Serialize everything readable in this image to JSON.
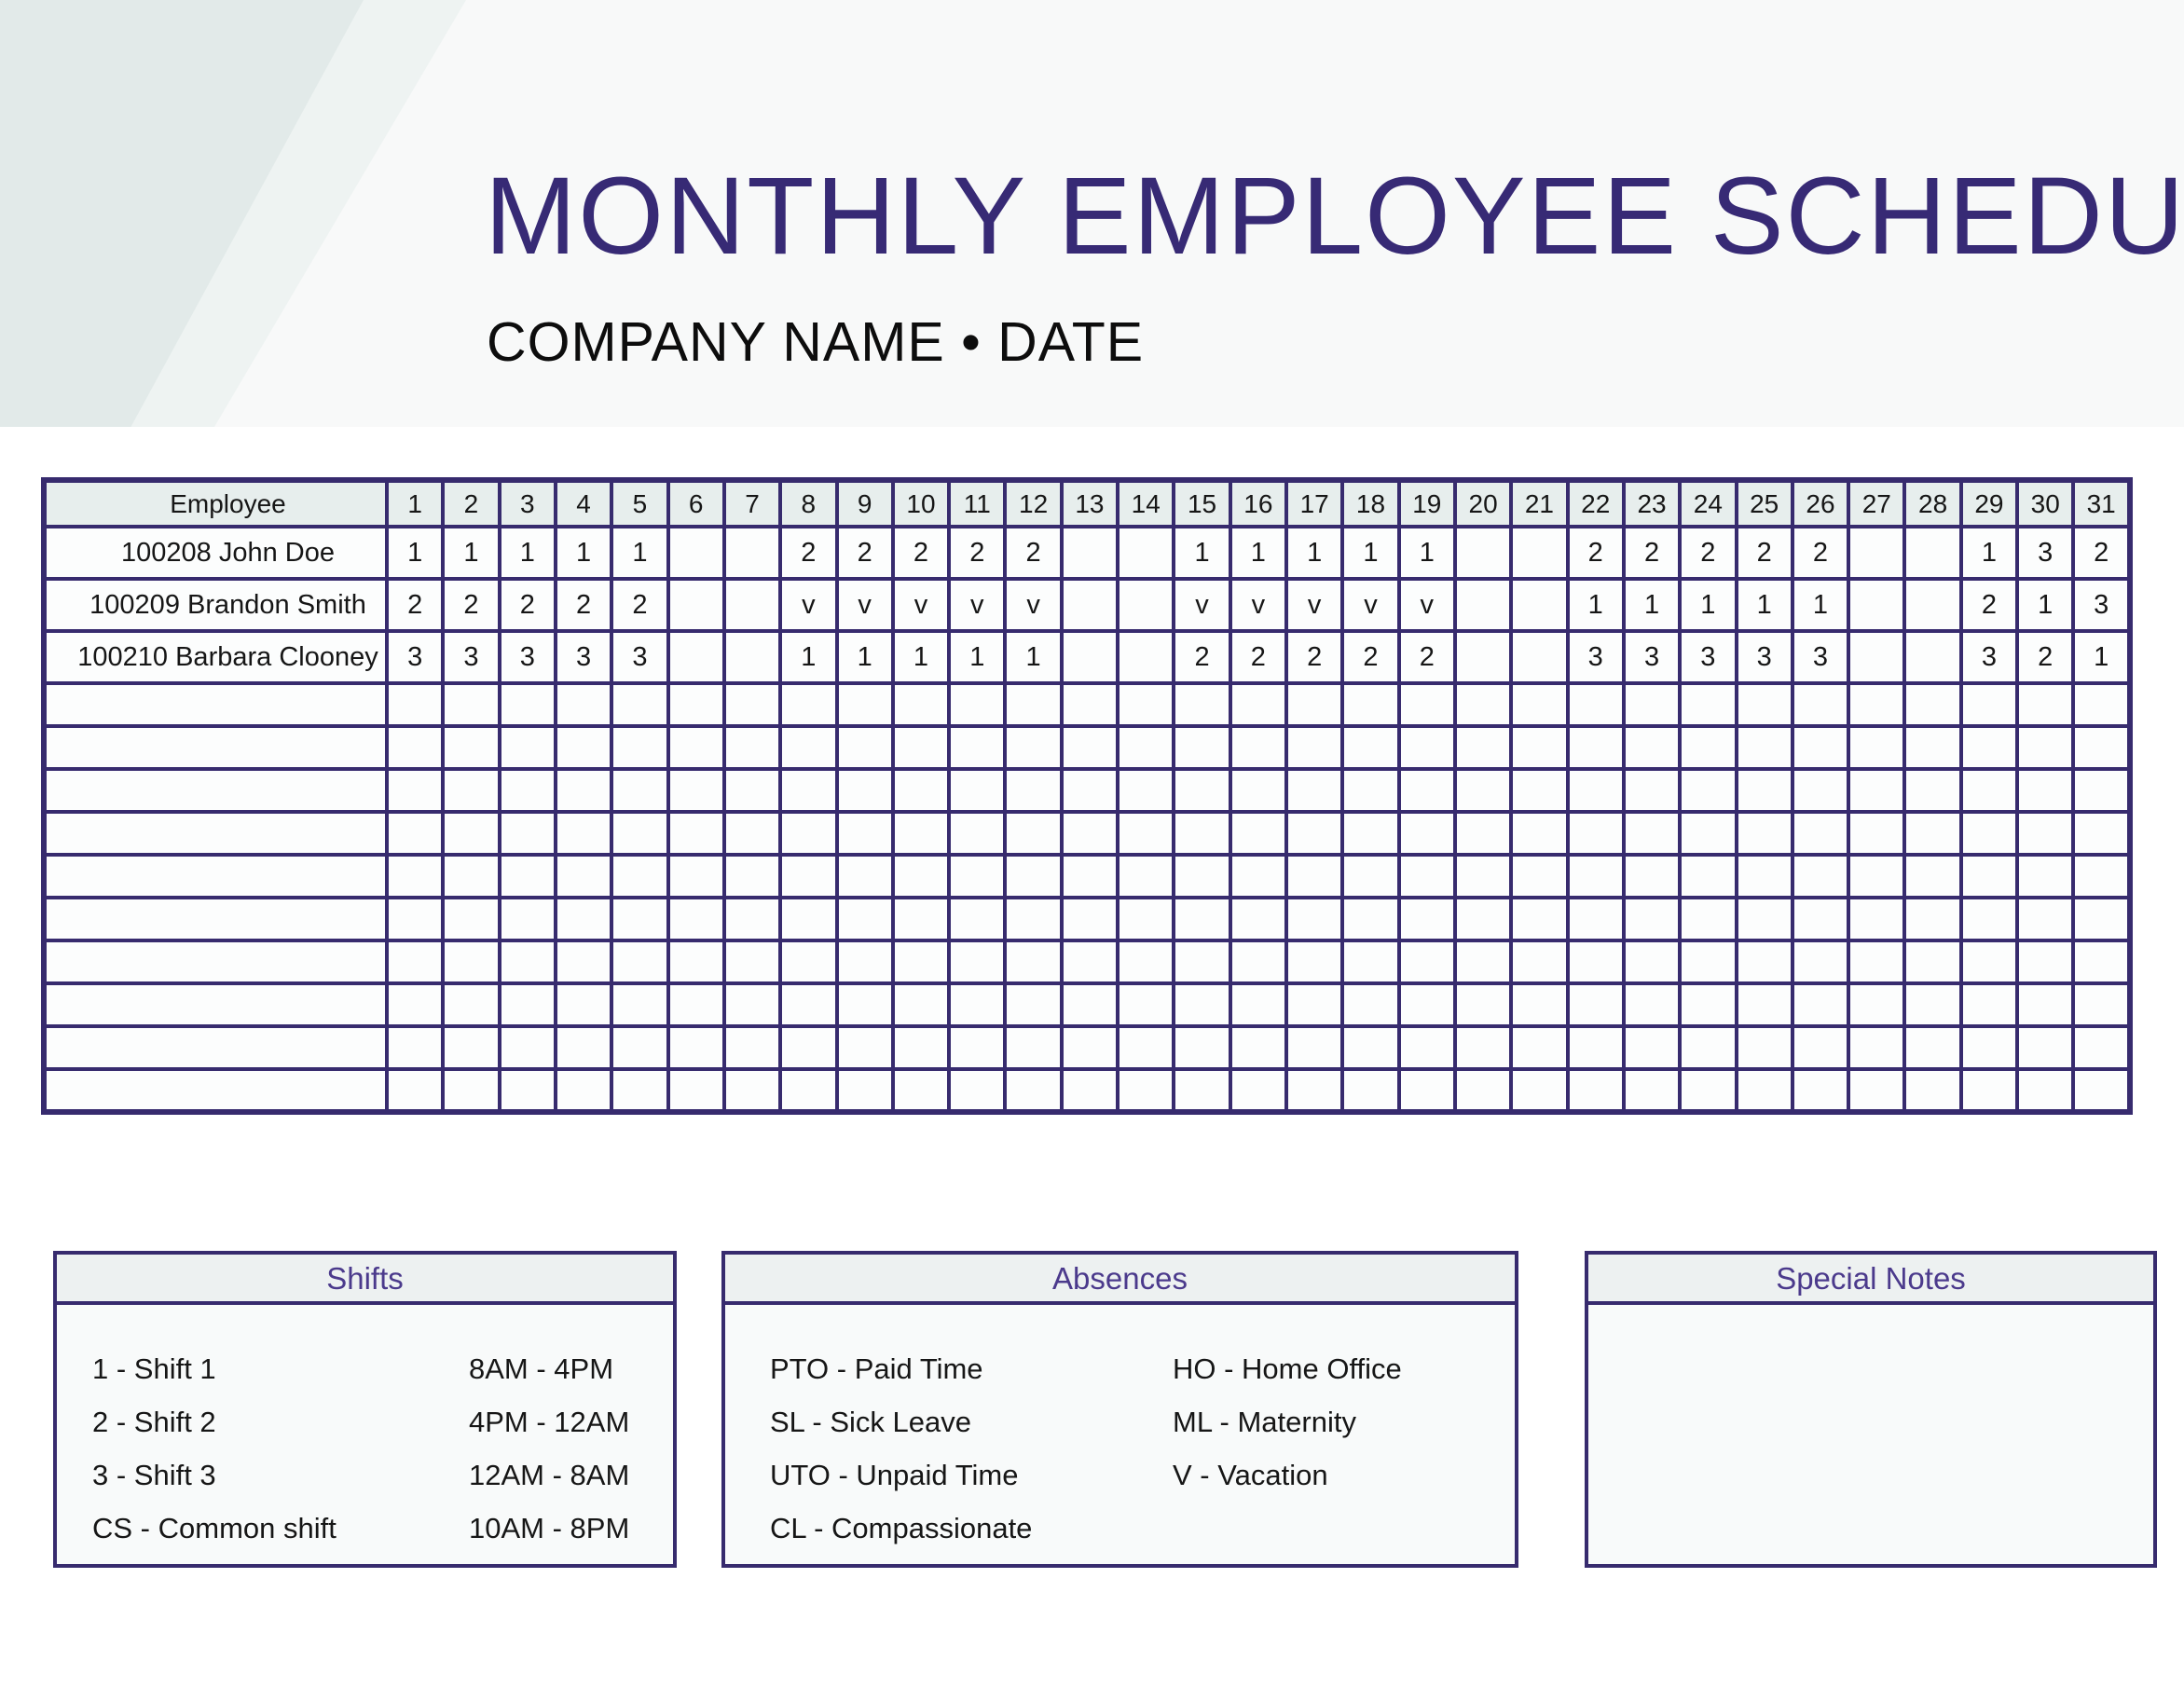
{
  "header": {
    "title": "MONTHLY EMPLOYEE SCHEDULE",
    "subtitle": "COMPANY NAME • DATE"
  },
  "schedule_table": {
    "employee_header": "Employee",
    "day_headers": [
      "1",
      "2",
      "3",
      "4",
      "5",
      "6",
      "7",
      "8",
      "9",
      "10",
      "11",
      "12",
      "13",
      "14",
      "15",
      "16",
      "17",
      "18",
      "19",
      "20",
      "21",
      "22",
      "23",
      "24",
      "25",
      "26",
      "27",
      "28",
      "29",
      "30",
      "31"
    ],
    "rows": [
      {
        "employee": "100208 John Doe",
        "days": [
          "1",
          "1",
          "1",
          "1",
          "1",
          "",
          "",
          "2",
          "2",
          "2",
          "2",
          "2",
          "",
          "",
          "1",
          "1",
          "1",
          "1",
          "1",
          "",
          "",
          "2",
          "2",
          "2",
          "2",
          "2",
          "",
          "",
          "1",
          "3",
          "2"
        ]
      },
      {
        "employee": "100209 Brandon Smith",
        "days": [
          "2",
          "2",
          "2",
          "2",
          "2",
          "",
          "",
          "v",
          "v",
          "v",
          "v",
          "v",
          "",
          "",
          "v",
          "v",
          "v",
          "v",
          "v",
          "",
          "",
          "1",
          "1",
          "1",
          "1",
          "1",
          "",
          "",
          "2",
          "1",
          "3"
        ]
      },
      {
        "employee": "100210 Barbara Clooney",
        "days": [
          "3",
          "3",
          "3",
          "3",
          "3",
          "",
          "",
          "1",
          "1",
          "1",
          "1",
          "1",
          "",
          "",
          "2",
          "2",
          "2",
          "2",
          "2",
          "",
          "",
          "3",
          "3",
          "3",
          "3",
          "3",
          "",
          "",
          "3",
          "2",
          "1"
        ]
      }
    ],
    "empty_row_count": 10
  },
  "legend": {
    "shifts": {
      "title": "Shifts",
      "items": [
        {
          "label": "1 - Shift 1",
          "time": "8AM - 4PM"
        },
        {
          "label": "2 - Shift 2",
          "time": "4PM - 12AM"
        },
        {
          "label": "3 - Shift 3",
          "time": "12AM - 8AM"
        },
        {
          "label": "CS - Common shift",
          "time": "10AM - 8PM"
        }
      ]
    },
    "absences": {
      "title": "Absences",
      "left_items": [
        "PTO - Paid Time",
        "SL - Sick Leave",
        "UTO - Unpaid Time",
        "CL - Compassionate"
      ],
      "right_items": [
        "HO - Home Office",
        "ML - Maternity",
        "V - Vacation"
      ]
    },
    "special_notes": {
      "title": "Special Notes",
      "content": ""
    }
  },
  "colors": {
    "border": "#372b6e",
    "title_ink": "#372a75",
    "purple": "#4b3a8c",
    "table_header_bg": "#e7eeed",
    "cell_bg": "#fcfdfd",
    "box_header_bg": "#edf1f1",
    "box_body_bg": "#f8fafa",
    "band_bg": "#f8f9f9",
    "corner_teal": "#e2eae9",
    "corner_light": "#eef3f2"
  }
}
